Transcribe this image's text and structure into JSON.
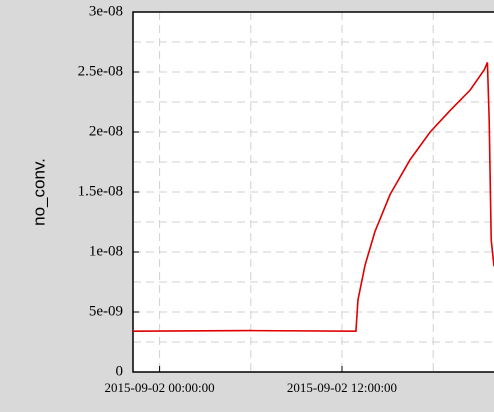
{
  "chart_data": {
    "type": "line",
    "ylabel": "no_conv.",
    "x": [
      "2015-09-01 22:15:00",
      "2015-09-02 06:00:00",
      "2015-09-02 12:55:00",
      "2015-09-02 13:03:00",
      "2015-09-02 13:31:00",
      "2015-09-02 14:10:00",
      "2015-09-02 15:10:00",
      "2015-09-02 16:29:00",
      "2015-09-02 17:48:00",
      "2015-09-02 19:07:00",
      "2015-09-02 20:26:00",
      "2015-09-02 21:22:00",
      "2015-09-02 21:34:00",
      "2015-09-02 21:41:00",
      "2015-09-02 21:49:00",
      "2015-09-02 22:00:00"
    ],
    "series": [
      {
        "color": "#e00000",
        "values": [
          3.4e-09,
          3.45e-09,
          3.4e-09,
          6e-09,
          8.9e-09,
          1.17e-08,
          1.48e-08,
          1.77e-08,
          2e-08,
          2.18e-08,
          2.35e-08,
          2.52e-08,
          2.58e-08,
          2.1e-08,
          1.1e-08,
          8.8e-09
        ]
      }
    ],
    "xlim": [
      "2015-09-01 22:15:00",
      "2015-09-02 22:00:00"
    ],
    "xticks": [
      "2015-09-02 00:00:00",
      "2015-09-02 12:00:00"
    ],
    "xticks_minor": [
      "2015-09-02 06:00:00",
      "2015-09-02 18:00:00"
    ],
    "ylim": [
      0,
      3e-08
    ],
    "yticks": [
      0,
      {
        "value": 5e-09,
        "label": "5e-09"
      },
      {
        "value": 1e-08,
        "label": "1e-08"
      },
      {
        "value": 1.5e-08,
        "label": "1.5e-08"
      },
      {
        "value": 2e-08,
        "label": "2e-08"
      },
      {
        "value": 2.5e-08,
        "label": "2.5e-08"
      },
      {
        "value": 3e-08,
        "label": "3e-08"
      }
    ],
    "yticks_minor": [
      2.5e-09,
      7.5e-09,
      1.25e-08,
      1.75e-08,
      2.25e-08,
      2.75e-08
    ],
    "grid": true
  }
}
